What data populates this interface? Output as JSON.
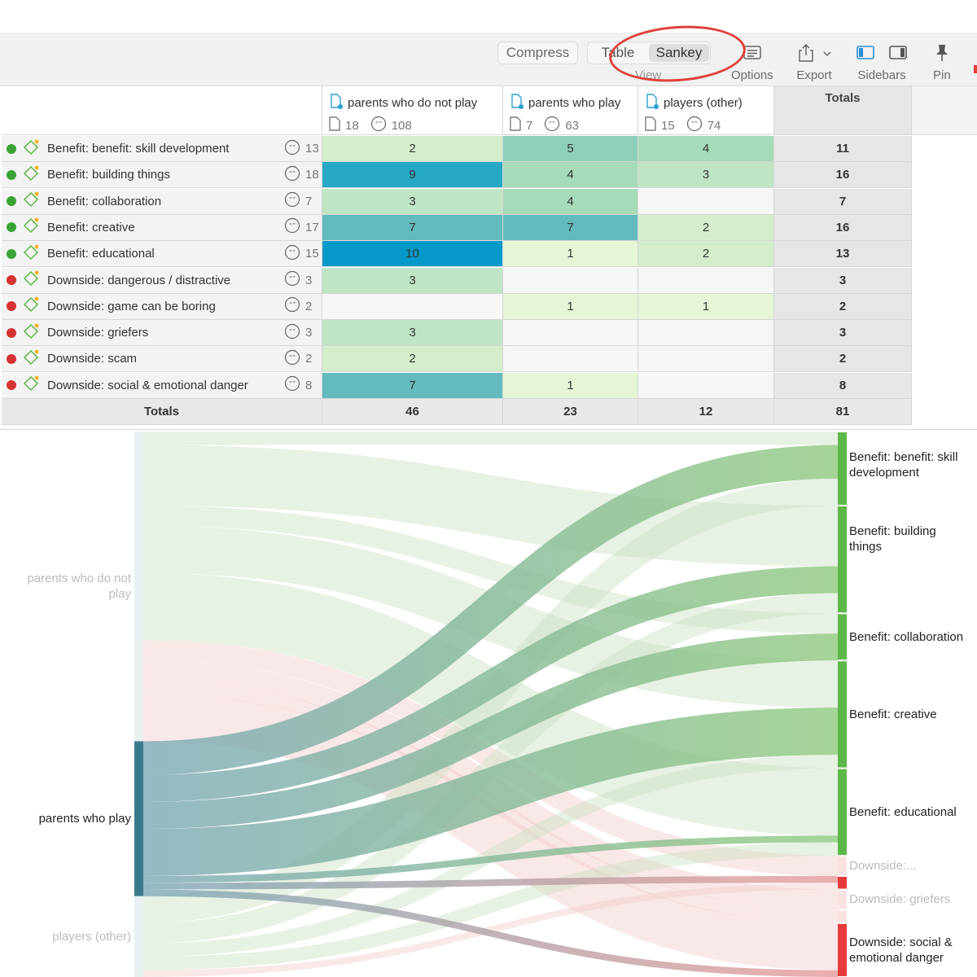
{
  "toolbar": {
    "compress_label": "Compress",
    "view_table_label": "Table",
    "view_sankey_label": "Sankey",
    "view_group_label": "View",
    "options_label": "Options",
    "export_label": "Export",
    "sidebars_label": "Sidebars",
    "pin_label": "Pin"
  },
  "table": {
    "columns": [
      {
        "name": "parents who do not play",
        "docs": "18",
        "quotes": "108"
      },
      {
        "name": "parents who play",
        "docs": "7",
        "quotes": "63"
      },
      {
        "name": "players (other)",
        "docs": "15",
        "quotes": "74"
      }
    ],
    "totals_header": "Totals",
    "rows": [
      {
        "label": "Benefit: benefit: skill development",
        "kind": "benefit",
        "quotes": "13",
        "values": [
          "2",
          "5",
          "4"
        ],
        "total": "11"
      },
      {
        "label": "Benefit: building things",
        "kind": "benefit",
        "quotes": "18",
        "values": [
          "9",
          "4",
          "3"
        ],
        "total": "16"
      },
      {
        "label": "Benefit: collaboration",
        "kind": "benefit",
        "quotes": "7",
        "values": [
          "3",
          "4",
          ""
        ],
        "total": "7"
      },
      {
        "label": "Benefit: creative",
        "kind": "benefit",
        "quotes": "17",
        "values": [
          "7",
          "7",
          "2"
        ],
        "total": "16"
      },
      {
        "label": "Benefit: educational",
        "kind": "benefit",
        "quotes": "15",
        "values": [
          "10",
          "1",
          "2"
        ],
        "total": "13"
      },
      {
        "label": "Downside: dangerous / distractive",
        "kind": "downside",
        "quotes": "3",
        "values": [
          "3",
          "",
          ""
        ],
        "total": "3"
      },
      {
        "label": "Downside: game can be boring",
        "kind": "downside",
        "quotes": "2",
        "values": [
          "",
          "1",
          "1"
        ],
        "total": "2"
      },
      {
        "label": "Downside: griefers",
        "kind": "downside",
        "quotes": "3",
        "values": [
          "3",
          "",
          ""
        ],
        "total": "3"
      },
      {
        "label": "Downside: scam",
        "kind": "downside",
        "quotes": "2",
        "values": [
          "2",
          "",
          ""
        ],
        "total": "2"
      },
      {
        "label": "Downside: social & emotional danger",
        "kind": "downside",
        "quotes": "8",
        "values": [
          "7",
          "1",
          ""
        ],
        "total": "8"
      }
    ],
    "totals_row": {
      "label": "Totals",
      "values": [
        "46",
        "23",
        "12"
      ],
      "total": "81"
    }
  },
  "sankey": {
    "sources": [
      {
        "label": "parents who do not play",
        "value": 46,
        "highlighted": false
      },
      {
        "label": "parents who play",
        "value": 23,
        "highlighted": true
      },
      {
        "label": "players (other)",
        "value": 12,
        "highlighted": false
      }
    ],
    "targets": [
      {
        "label": "Benefit: benefit: skill development",
        "value": 11,
        "kind": "benefit",
        "show_label": true,
        "highlighted": true
      },
      {
        "label": "Benefit: building things",
        "value": 16,
        "kind": "benefit",
        "show_label": true,
        "highlighted": true
      },
      {
        "label": "Benefit: collaboration",
        "value": 7,
        "kind": "benefit",
        "show_label": true,
        "highlighted": true
      },
      {
        "label": "Benefit: creative",
        "value": 16,
        "kind": "benefit",
        "show_label": true,
        "highlighted": true
      },
      {
        "label": "Benefit: educational",
        "value": 13,
        "kind": "benefit",
        "show_label": true,
        "highlighted": true
      },
      {
        "label": "Downside:...",
        "value": 3,
        "kind": "downside",
        "show_label": true,
        "highlighted": false
      },
      {
        "label": "",
        "value": 2,
        "kind": "downside",
        "show_label": false,
        "highlighted": true
      },
      {
        "label": "Downside: griefers",
        "value": 3,
        "kind": "downside",
        "show_label": true,
        "highlighted": false
      },
      {
        "label": "",
        "value": 2,
        "kind": "downside",
        "show_label": false,
        "highlighted": false
      },
      {
        "label": "Downside: social & emotional danger",
        "value": 8,
        "kind": "downside",
        "show_label": true,
        "highlighted": true
      }
    ],
    "colors": {
      "benefit_node": "#5cb848",
      "benefit_node_faded": "#cfe8c6",
      "downside_node": "#e43a3a",
      "downside_node_faded": "#fbe2e2",
      "source_node": "#3a7a8c",
      "source_node_faded": "#e8f0f2",
      "link_benefit": "#8fc97e",
      "link_downside": "#e79a9a",
      "link_from_highlight": "#7aa8b4"
    }
  },
  "heat_colors": {
    "1": "#e6f5d6",
    "2": "#d4eecb",
    "3": "#bfe5c5",
    "4": "#a6dbb9",
    "5": "#8dcfb8",
    "7": "#63bbbd",
    "9": "#25a8c4",
    "10": "#0499c8"
  }
}
